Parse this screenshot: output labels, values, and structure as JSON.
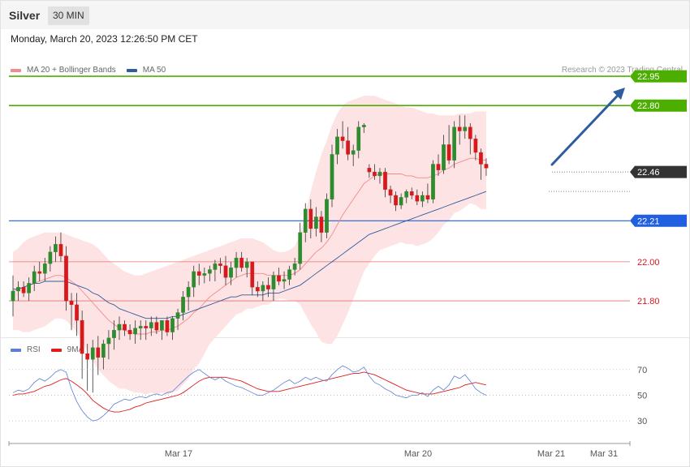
{
  "header": {
    "symbol": "Silver",
    "timeframe": "30 MIN"
  },
  "datetime": "Monday, March 20, 2023 12:26:50 PM CET",
  "legend": {
    "ma20": {
      "label": "MA 20 + Bollinger Bands",
      "color": "#f28b8b"
    },
    "ma50": {
      "label": "MA 50",
      "color": "#2f5c9e"
    }
  },
  "copyright": "Research © 2023 Trading Central",
  "rsi_legend": {
    "rsi": {
      "label": "RSI",
      "color": "#5b7fd6"
    },
    "ma9": {
      "label": "9MA",
      "color": "#e01b1b"
    }
  },
  "colors": {
    "up": "#2e8b2e",
    "down": "#d7191c",
    "resistance": "#4caf00",
    "support": "#1f5fe0",
    "pivot": "#e57373",
    "current": "#333333",
    "band": "#fde3e3"
  },
  "chart_data": [
    {
      "type": "candlestick",
      "title": "",
      "x_tick_labels": [
        "Mar 17",
        "Mar 20",
        "Mar 21",
        "Mar 31"
      ],
      "ylim": [
        21.63,
        23.05
      ],
      "price_levels": [
        {
          "value": 22.95,
          "label": "22.95",
          "kind": "resistance"
        },
        {
          "value": 22.8,
          "label": "22.80",
          "kind": "resistance"
        },
        {
          "value": 22.46,
          "label": "22.46",
          "kind": "current"
        },
        {
          "value": 22.21,
          "label": "22.21",
          "kind": "support"
        },
        {
          "value": 22.0,
          "label": "22.00",
          "kind": "pivot"
        },
        {
          "value": 21.8,
          "label": "21.80",
          "kind": "pivot"
        }
      ],
      "candles": [
        [
          21.8,
          21.93,
          21.72,
          21.85
        ],
        [
          21.85,
          21.9,
          21.8,
          21.87
        ],
        [
          21.87,
          21.9,
          21.82,
          21.84
        ],
        [
          21.84,
          21.92,
          21.8,
          21.89
        ],
        [
          21.89,
          21.98,
          21.85,
          21.95
        ],
        [
          21.95,
          22.0,
          21.9,
          21.94
        ],
        [
          21.94,
          22.02,
          21.9,
          21.99
        ],
        [
          21.99,
          22.08,
          21.95,
          22.05
        ],
        [
          22.05,
          22.13,
          22.0,
          22.09
        ],
        [
          22.09,
          22.15,
          22.0,
          22.03
        ],
        [
          22.03,
          22.08,
          21.75,
          21.8
        ],
        [
          21.8,
          21.84,
          21.65,
          21.78
        ],
        [
          21.78,
          21.84,
          21.62,
          21.7
        ],
        [
          21.7,
          21.75,
          21.4,
          21.53
        ],
        [
          21.53,
          21.58,
          21.34,
          21.5
        ],
        [
          21.5,
          21.6,
          21.33,
          21.56
        ],
        [
          21.56,
          21.62,
          21.42,
          21.51
        ],
        [
          21.51,
          21.6,
          21.45,
          21.58
        ],
        [
          21.58,
          21.65,
          21.5,
          21.61
        ],
        [
          21.61,
          21.7,
          21.55,
          21.65
        ],
        [
          21.65,
          21.72,
          21.6,
          21.68
        ],
        [
          21.68,
          21.7,
          21.62,
          21.65
        ],
        [
          21.65,
          21.68,
          21.6,
          21.63
        ],
        [
          21.63,
          21.7,
          21.58,
          21.66
        ],
        [
          21.66,
          21.7,
          21.6,
          21.67
        ],
        [
          21.67,
          21.7,
          21.6,
          21.66
        ],
        [
          21.66,
          21.72,
          21.62,
          21.69
        ],
        [
          21.69,
          21.72,
          21.63,
          21.65
        ],
        [
          21.65,
          21.7,
          21.6,
          21.7
        ],
        [
          21.7,
          21.72,
          21.62,
          21.64
        ],
        [
          21.64,
          21.72,
          21.6,
          21.71
        ],
        [
          21.71,
          21.76,
          21.65,
          21.74
        ],
        [
          21.74,
          21.85,
          21.7,
          21.82
        ],
        [
          21.82,
          21.9,
          21.75,
          21.87
        ],
        [
          21.87,
          21.98,
          21.82,
          21.95
        ],
        [
          21.95,
          21.99,
          21.88,
          21.93
        ],
        [
          21.93,
          21.97,
          21.89,
          21.94
        ],
        [
          21.94,
          21.98,
          21.9,
          21.96
        ],
        [
          21.96,
          22.01,
          21.9,
          21.99
        ],
        [
          21.99,
          22.02,
          21.94,
          21.98
        ],
        [
          21.98,
          22.03,
          21.88,
          21.92
        ],
        [
          21.92,
          22.0,
          21.88,
          21.97
        ],
        [
          21.97,
          22.05,
          21.92,
          22.02
        ],
        [
          22.02,
          22.05,
          21.95,
          21.97
        ],
        [
          21.97,
          22.02,
          21.92,
          22.0
        ],
        [
          22.0,
          22.0,
          21.83,
          21.87
        ],
        [
          21.87,
          21.9,
          21.82,
          21.85
        ],
        [
          21.85,
          21.9,
          21.8,
          21.88
        ],
        [
          21.88,
          21.92,
          21.82,
          21.86
        ],
        [
          21.86,
          21.95,
          21.8,
          21.93
        ],
        [
          21.93,
          21.97,
          21.88,
          21.9
        ],
        [
          21.9,
          21.95,
          21.86,
          21.91
        ],
        [
          21.91,
          21.98,
          21.88,
          21.96
        ],
        [
          21.96,
          22.02,
          21.93,
          21.99
        ],
        [
          21.99,
          22.2,
          21.96,
          22.15
        ],
        [
          22.15,
          22.3,
          22.1,
          22.27
        ],
        [
          22.27,
          22.32,
          22.12,
          22.17
        ],
        [
          22.17,
          22.28,
          22.13,
          22.23
        ],
        [
          22.23,
          22.26,
          22.1,
          22.15
        ],
        [
          22.15,
          22.35,
          22.12,
          22.32
        ],
        [
          22.32,
          22.6,
          22.28,
          22.55
        ],
        [
          22.55,
          22.68,
          22.5,
          22.64
        ],
        [
          22.64,
          22.72,
          22.58,
          22.62
        ],
        [
          22.62,
          22.69,
          22.52,
          22.55
        ],
        [
          22.55,
          22.6,
          22.49,
          22.57
        ],
        [
          22.57,
          22.72,
          22.53,
          22.69
        ],
        [
          22.69,
          22.71,
          22.66,
          22.7
        ],
        [
          22.48,
          22.5,
          22.43,
          22.46
        ],
        [
          22.46,
          22.5,
          22.42,
          22.44
        ],
        [
          22.44,
          22.48,
          22.4,
          22.46
        ],
        [
          22.46,
          22.48,
          22.33,
          22.37
        ],
        [
          22.37,
          22.39,
          22.3,
          22.34
        ],
        [
          22.34,
          22.36,
          22.26,
          22.29
        ],
        [
          22.29,
          22.35,
          22.27,
          22.33
        ],
        [
          22.33,
          22.37,
          22.3,
          22.36
        ],
        [
          22.36,
          22.38,
          22.32,
          22.34
        ],
        [
          22.34,
          22.37,
          22.29,
          22.31
        ],
        [
          22.31,
          22.36,
          22.28,
          22.34
        ],
        [
          22.34,
          22.4,
          22.3,
          22.32
        ],
        [
          22.32,
          22.52,
          22.3,
          22.5
        ],
        [
          22.5,
          22.55,
          22.44,
          22.47
        ],
        [
          22.47,
          22.65,
          22.45,
          22.6
        ],
        [
          22.6,
          22.7,
          22.5,
          22.52
        ],
        [
          22.52,
          22.72,
          22.48,
          22.69
        ],
        [
          22.69,
          22.75,
          22.6,
          22.67
        ],
        [
          22.67,
          22.75,
          22.63,
          22.69
        ],
        [
          22.69,
          22.71,
          22.55,
          22.63
        ],
        [
          22.63,
          22.65,
          22.52,
          22.56
        ],
        [
          22.56,
          22.58,
          22.42,
          22.5
        ],
        [
          22.5,
          22.53,
          22.44,
          22.48
        ]
      ],
      "ma20": [
        21.85,
        21.86,
        21.87,
        21.88,
        21.89,
        21.9,
        21.91,
        21.92,
        21.93,
        21.93,
        21.92,
        21.9,
        21.88,
        21.85,
        21.82,
        21.79,
        21.76,
        21.73,
        21.7,
        21.68,
        21.66,
        21.65,
        21.64,
        21.63,
        21.63,
        21.63,
        21.64,
        21.64,
        21.65,
        21.65,
        21.66,
        21.67,
        21.69,
        21.71,
        21.74,
        21.76,
        21.79,
        21.82,
        21.84,
        21.86,
        21.88,
        21.9,
        21.92,
        21.93,
        21.94,
        21.94,
        21.94,
        21.94,
        21.93,
        21.93,
        21.93,
        21.93,
        21.93,
        21.94,
        21.96,
        21.99,
        22.02,
        22.05,
        22.07,
        22.1,
        22.14,
        22.19,
        22.24,
        22.28,
        22.32,
        22.36,
        22.4,
        22.42,
        22.44,
        22.45,
        22.45,
        22.45,
        22.45,
        22.45,
        22.44,
        22.44,
        22.43,
        22.43,
        22.43,
        22.44,
        22.45,
        22.47,
        22.48,
        22.5,
        22.51,
        22.52,
        22.53,
        22.53,
        22.52,
        22.52
      ],
      "ma50": [
        21.86,
        21.86,
        21.87,
        21.88,
        21.89,
        21.89,
        21.9,
        21.9,
        21.9,
        21.9,
        21.9,
        21.89,
        21.88,
        21.87,
        21.86,
        21.84,
        21.83,
        21.81,
        21.79,
        21.78,
        21.76,
        21.75,
        21.74,
        21.73,
        21.72,
        21.71,
        21.71,
        21.71,
        21.71,
        21.71,
        21.72,
        21.72,
        21.73,
        21.74,
        21.75,
        21.76,
        21.77,
        21.78,
        21.79,
        21.8,
        21.81,
        21.82,
        21.82,
        21.83,
        21.83,
        21.83,
        21.83,
        21.83,
        21.84,
        21.84,
        21.84,
        21.85,
        21.86,
        21.87,
        21.88,
        21.9,
        21.92,
        21.94,
        21.96,
        21.98,
        22.0,
        22.02,
        22.04,
        22.06,
        22.08,
        22.1,
        22.12,
        22.14,
        22.15,
        22.16,
        22.17,
        22.18,
        22.19,
        22.2,
        22.21,
        22.22,
        22.23,
        22.24,
        22.25,
        22.26,
        22.27,
        22.28,
        22.29,
        22.3,
        22.31,
        22.32,
        22.33,
        22.34,
        22.35,
        22.36
      ],
      "bollinger_upper": [
        22.05,
        22.07,
        22.1,
        22.12,
        22.13,
        22.14,
        22.15,
        22.15,
        22.15,
        22.15,
        22.14,
        22.13,
        22.12,
        22.11,
        22.1,
        22.09,
        22.07,
        22.04,
        22.01,
        21.99,
        21.97,
        21.95,
        21.94,
        21.93,
        21.93,
        21.94,
        21.95,
        21.96,
        21.97,
        21.98,
        21.99,
        22.0,
        22.01,
        22.02,
        22.03,
        22.04,
        22.05,
        22.06,
        22.07,
        22.08,
        22.09,
        22.1,
        22.11,
        22.12,
        22.12,
        22.12,
        22.11,
        22.1,
        22.08,
        22.06,
        22.05,
        22.05,
        22.06,
        22.08,
        22.14,
        22.25,
        22.36,
        22.46,
        22.55,
        22.62,
        22.7,
        22.76,
        22.8,
        22.82,
        22.83,
        22.84,
        22.85,
        22.85,
        22.85,
        22.84,
        22.83,
        22.82,
        22.81,
        22.8,
        22.79,
        22.79,
        22.78,
        22.77,
        22.76,
        22.76,
        22.75,
        22.75,
        22.75,
        22.75,
        22.76,
        22.76,
        22.76,
        22.77,
        22.77,
        22.77
      ],
      "bollinger_lower": [
        21.65,
        21.65,
        21.64,
        21.64,
        21.65,
        21.66,
        21.67,
        21.69,
        21.71,
        21.71,
        21.7,
        21.67,
        21.64,
        21.59,
        21.54,
        21.49,
        21.45,
        21.42,
        21.39,
        21.37,
        21.35,
        21.35,
        21.34,
        21.33,
        21.33,
        21.32,
        21.33,
        21.32,
        21.33,
        21.32,
        21.33,
        21.34,
        21.37,
        21.4,
        21.45,
        21.48,
        21.53,
        21.58,
        21.61,
        21.64,
        21.67,
        21.7,
        21.73,
        21.74,
        21.76,
        21.76,
        21.77,
        21.78,
        21.78,
        21.8,
        21.81,
        21.81,
        21.8,
        21.8,
        21.78,
        21.73,
        21.68,
        21.64,
        21.59,
        21.58,
        21.58,
        21.62,
        21.68,
        21.74,
        21.81,
        21.88,
        21.95,
        21.99,
        22.03,
        22.06,
        22.07,
        22.08,
        22.09,
        22.1,
        22.09,
        22.09,
        22.08,
        22.09,
        22.1,
        22.12,
        22.15,
        22.19,
        22.21,
        22.25,
        22.26,
        22.28,
        22.3,
        22.29,
        22.27,
        22.27
      ]
    },
    {
      "type": "line",
      "title": "",
      "ylim": [
        20,
        80
      ],
      "y_tick_labels": [
        "70",
        "50",
        "30"
      ],
      "y_ticks": [
        70,
        50,
        30
      ],
      "series": [
        {
          "name": "RSI",
          "values": [
            52,
            54,
            53,
            55,
            60,
            63,
            61,
            64,
            68,
            70,
            68,
            55,
            45,
            38,
            33,
            30,
            31,
            34,
            38,
            43,
            45,
            47,
            46,
            48,
            49,
            48,
            50,
            51,
            50,
            52,
            53,
            57,
            61,
            65,
            68,
            70,
            67,
            64,
            62,
            64,
            61,
            59,
            57,
            56,
            54,
            52,
            50,
            50,
            52,
            54,
            57,
            60,
            62,
            59,
            61,
            64,
            62,
            64,
            62,
            61,
            66,
            70,
            73,
            71,
            68,
            69,
            72,
            65,
            60,
            58,
            55,
            53,
            50,
            49,
            48,
            50,
            50,
            52,
            49,
            54,
            57,
            54,
            58,
            65,
            63,
            66,
            61,
            55,
            52,
            50
          ]
        },
        {
          "name": "9MA",
          "values": [
            50,
            51,
            51,
            52,
            53,
            55,
            57,
            58,
            60,
            62,
            63,
            61,
            58,
            55,
            51,
            46,
            43,
            40,
            38,
            37,
            37,
            38,
            39,
            41,
            42,
            44,
            45,
            46,
            47,
            48,
            49,
            50,
            52,
            55,
            58,
            61,
            63,
            64,
            64,
            64,
            64,
            63,
            62,
            61,
            59,
            57,
            55,
            54,
            53,
            53,
            53,
            54,
            55,
            56,
            57,
            58,
            59,
            60,
            61,
            62,
            63,
            64,
            65,
            66,
            67,
            67,
            68,
            67,
            66,
            64,
            62,
            60,
            58,
            56,
            54,
            53,
            52,
            51,
            51,
            51,
            52,
            53,
            54,
            55,
            56,
            58,
            59,
            60,
            59,
            58
          ]
        }
      ]
    }
  ]
}
